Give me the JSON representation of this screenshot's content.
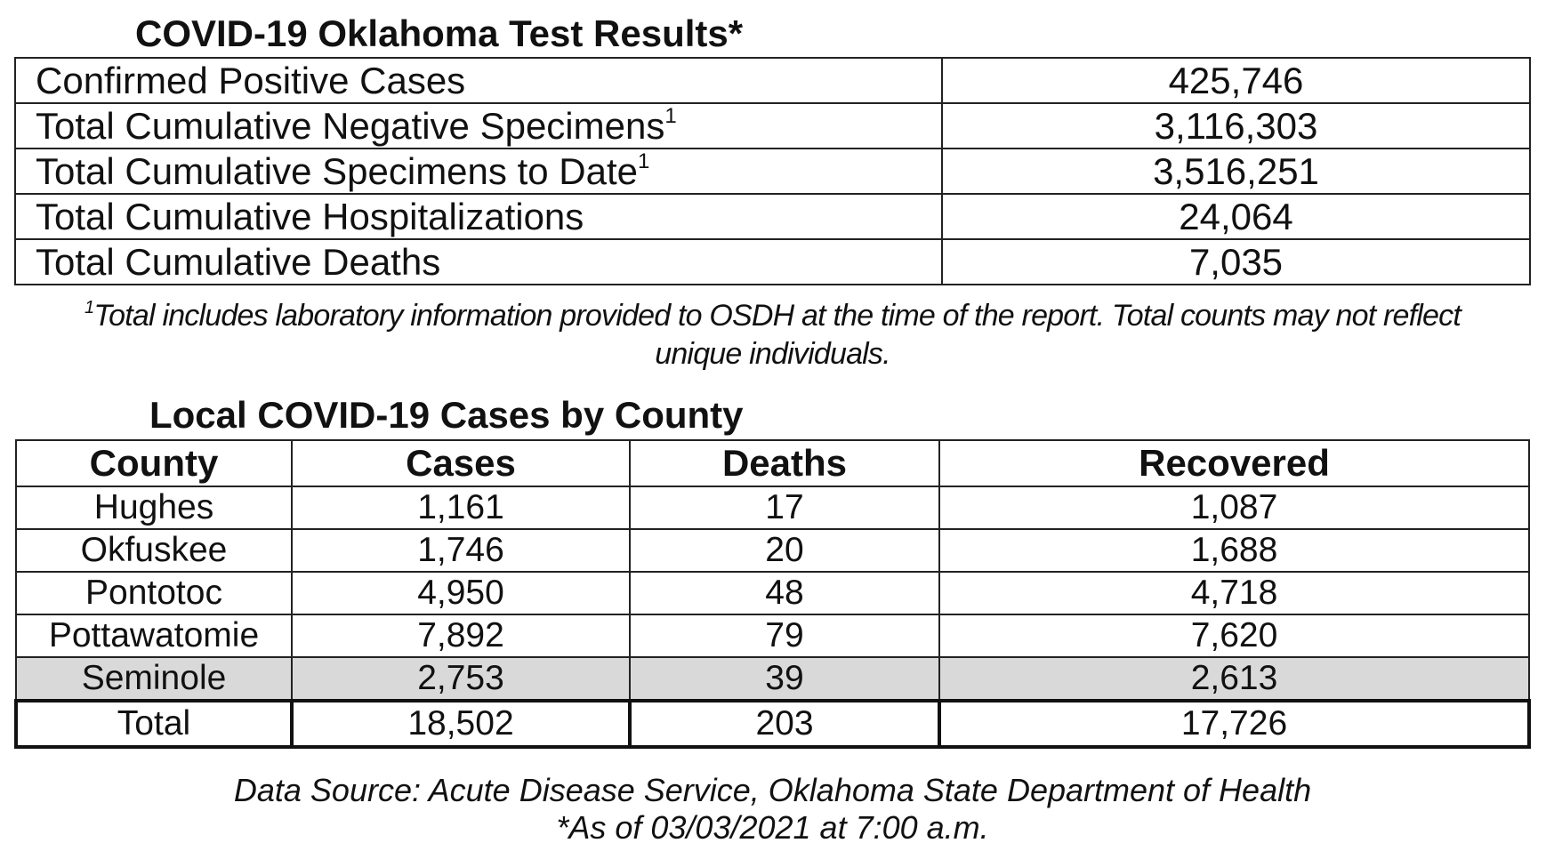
{
  "test_results": {
    "title": "COVID-19 Oklahoma Test Results*",
    "rows": [
      {
        "label": "Confirmed Positive Cases",
        "sup": "",
        "value": "425,746"
      },
      {
        "label": "Total Cumulative Negative Specimens",
        "sup": "1",
        "value": "3,116,303"
      },
      {
        "label": "Total Cumulative Specimens to Date",
        "sup": "1",
        "value": "3,516,251"
      },
      {
        "label": "Total Cumulative Hospitalizations",
        "sup": "",
        "value": "24,064"
      },
      {
        "label": "Total Cumulative Deaths",
        "sup": "",
        "value": "7,035"
      }
    ],
    "footnote_marker": "1",
    "footnote_line1": "Total includes laboratory information provided to OSDH at the time of the report. Total counts may not reflect",
    "footnote_line2": "unique individuals."
  },
  "county_cases": {
    "title": "Local COVID-19 Cases by County",
    "headers": [
      "County",
      "Cases",
      "Deaths",
      "Recovered"
    ],
    "rows": [
      [
        "Hughes",
        "1,161",
        "17",
        "1,087"
      ],
      [
        "Okfuskee",
        "1,746",
        "20",
        "1,688"
      ],
      [
        "Pontotoc",
        "4,950",
        "48",
        "4,718"
      ],
      [
        "Pottawatomie",
        "7,892",
        "79",
        "7,620"
      ],
      [
        "Seminole",
        "2,753",
        "39",
        "2,613"
      ]
    ],
    "total": [
      "Total",
      "18,502",
      "203",
      "17,726"
    ],
    "highlight_color": "#d9d9d9"
  },
  "source": {
    "line1": "Data Source: Acute Disease Service, Oklahoma State Department of Health",
    "line2": "*As of 03/03/2021 at 7:00 a.m."
  }
}
